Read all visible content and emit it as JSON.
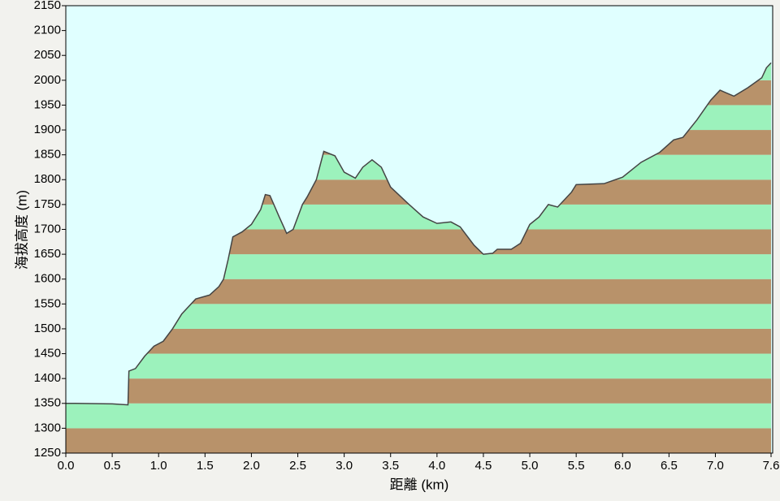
{
  "chart_data": {
    "type": "area",
    "xlabel": "距離  (km)",
    "ylabel": "海拔高度 (m)",
    "x": [
      0,
      0.1,
      0.5,
      0.67,
      0.68,
      0.75,
      0.85,
      0.95,
      1.05,
      1.15,
      1.25,
      1.4,
      1.55,
      1.65,
      1.7,
      1.75,
      1.8,
      1.9,
      2.0,
      2.1,
      2.15,
      2.2,
      2.3,
      2.38,
      2.45,
      2.55,
      2.6,
      2.7,
      2.78,
      2.9,
      3.0,
      3.12,
      3.2,
      3.3,
      3.4,
      3.5,
      3.7,
      3.85,
      4.0,
      4.15,
      4.25,
      4.4,
      4.5,
      4.6,
      4.65,
      4.8,
      4.9,
      5.0,
      5.1,
      5.2,
      5.3,
      5.45,
      5.5,
      5.8,
      6.0,
      6.2,
      6.4,
      6.55,
      6.65,
      6.8,
      6.95,
      7.05,
      7.2,
      7.35,
      7.5,
      7.55,
      7.6
    ],
    "values": [
      1350,
      1350,
      1349,
      1347,
      1415,
      1420,
      1445,
      1465,
      1475,
      1500,
      1530,
      1560,
      1568,
      1585,
      1600,
      1640,
      1685,
      1695,
      1710,
      1740,
      1770,
      1768,
      1725,
      1692,
      1700,
      1750,
      1765,
      1800,
      1857,
      1848,
      1815,
      1803,
      1825,
      1840,
      1825,
      1785,
      1750,
      1725,
      1712,
      1715,
      1705,
      1668,
      1650,
      1652,
      1660,
      1660,
      1672,
      1710,
      1725,
      1750,
      1745,
      1775,
      1790,
      1792,
      1805,
      1835,
      1855,
      1880,
      1885,
      1920,
      1960,
      1980,
      1968,
      1985,
      2005,
      2025,
      2035
    ],
    "xlim": [
      0,
      7.6
    ],
    "ylim": [
      1250,
      2150
    ],
    "xticks": [
      {
        "value": 0,
        "label": "0.0"
      },
      0.5,
      {
        "value": 1,
        "label": "1.0"
      },
      1.5,
      {
        "value": 2,
        "label": "2.0"
      },
      2.5,
      {
        "value": 3,
        "label": "3.0"
      },
      3.5,
      {
        "value": 4,
        "label": "4.0"
      },
      4.5,
      {
        "value": 5,
        "label": "5.0"
      },
      5.5,
      {
        "value": 6,
        "label": "6.0"
      },
      6.5,
      {
        "value": 7,
        "label": "7.0"
      },
      7.6
    ],
    "yticks": [
      1250,
      1300,
      1350,
      1400,
      1450,
      1500,
      1550,
      1600,
      1650,
      1700,
      1750,
      1800,
      1850,
      1900,
      1950,
      2000,
      2050,
      2100,
      2150
    ],
    "band_colors": [
      "#b8926a",
      "#9cf2bc"
    ],
    "line_color": "#444444",
    "background": "#e0ffff"
  }
}
